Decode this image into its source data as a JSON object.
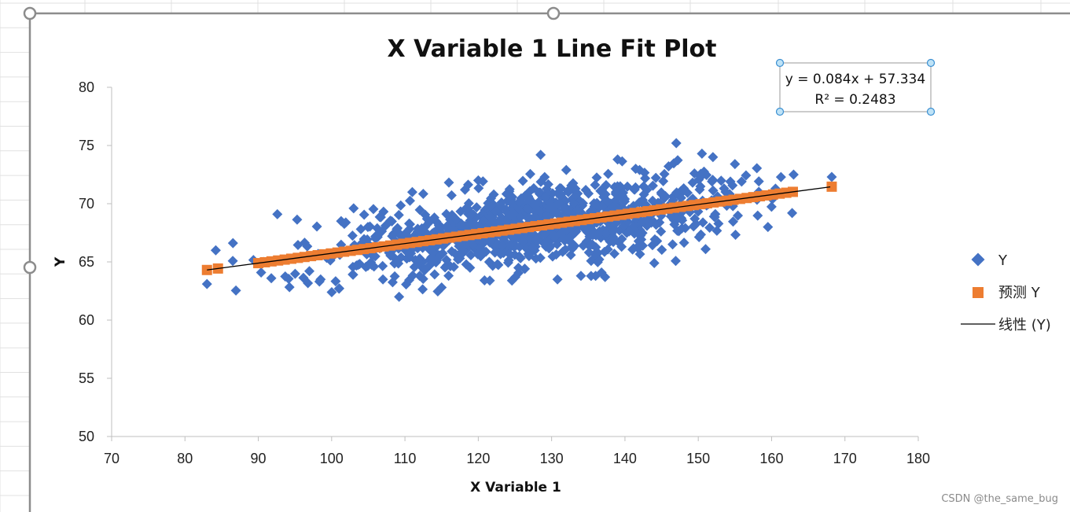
{
  "chart_data": {
    "type": "scatter",
    "title": "X Variable 1 Line Fit  Plot",
    "xlabel": "X Variable 1",
    "ylabel": "Y",
    "xlim": [
      70,
      180
    ],
    "ylim": [
      50,
      80
    ],
    "xticks": [
      "70",
      "80",
      "90",
      "100",
      "110",
      "120",
      "130",
      "140",
      "150",
      "160",
      "170",
      "180"
    ],
    "yticks": [
      "50",
      "55",
      "60",
      "65",
      "70",
      "75",
      "80"
    ],
    "legend_position": "right",
    "grid": false,
    "series": [
      {
        "name": "Y",
        "marker": "diamond",
        "color": "#4472C4",
        "points": "dense cloud of ~1000 observations, x ≈ 83–168, y ≈ 62–75"
      },
      {
        "name": "预测 Y",
        "marker": "square",
        "color": "#ED7D31",
        "points": "predicted values on fitted line"
      },
      {
        "name": "线性 (Y)",
        "type": "trendline",
        "color": "#000000",
        "slope": 0.084,
        "intercept": 57.334,
        "x_range": [
          83,
          168
        ]
      }
    ],
    "trendline_label": {
      "equation": "y = 0.084x + 57.334",
      "r2": "R² = 0.2483"
    },
    "sample_points": [
      [
        83,
        63.1
      ],
      [
        84.2,
        66
      ],
      [
        92.6,
        69.1
      ],
      [
        109.2,
        62
      ],
      [
        101,
        62.7
      ],
      [
        115,
        62.8
      ],
      [
        147,
        75.2
      ],
      [
        150.5,
        74.3
      ],
      [
        128.5,
        74.2
      ],
      [
        152,
        74
      ],
      [
        155,
        73.4
      ],
      [
        163,
        72.5
      ],
      [
        168.2,
        72.3
      ],
      [
        159.5,
        68
      ],
      [
        162.8,
        69.2
      ],
      [
        151,
        66.1
      ],
      [
        146.5,
        66.5
      ],
      [
        144,
        64.9
      ],
      [
        130.8,
        63.5
      ],
      [
        134,
        63.8
      ],
      [
        98.5,
        63.5
      ],
      [
        107,
        63.5
      ],
      [
        103,
        69.6
      ],
      [
        111,
        71
      ],
      [
        120,
        72
      ],
      [
        132,
        72.9
      ],
      [
        139,
        73.8
      ],
      [
        142,
        72.9
      ],
      [
        136,
        63.8
      ],
      [
        112,
        63.8
      ]
    ]
  },
  "watermark": "CSDN @the_same_bug"
}
